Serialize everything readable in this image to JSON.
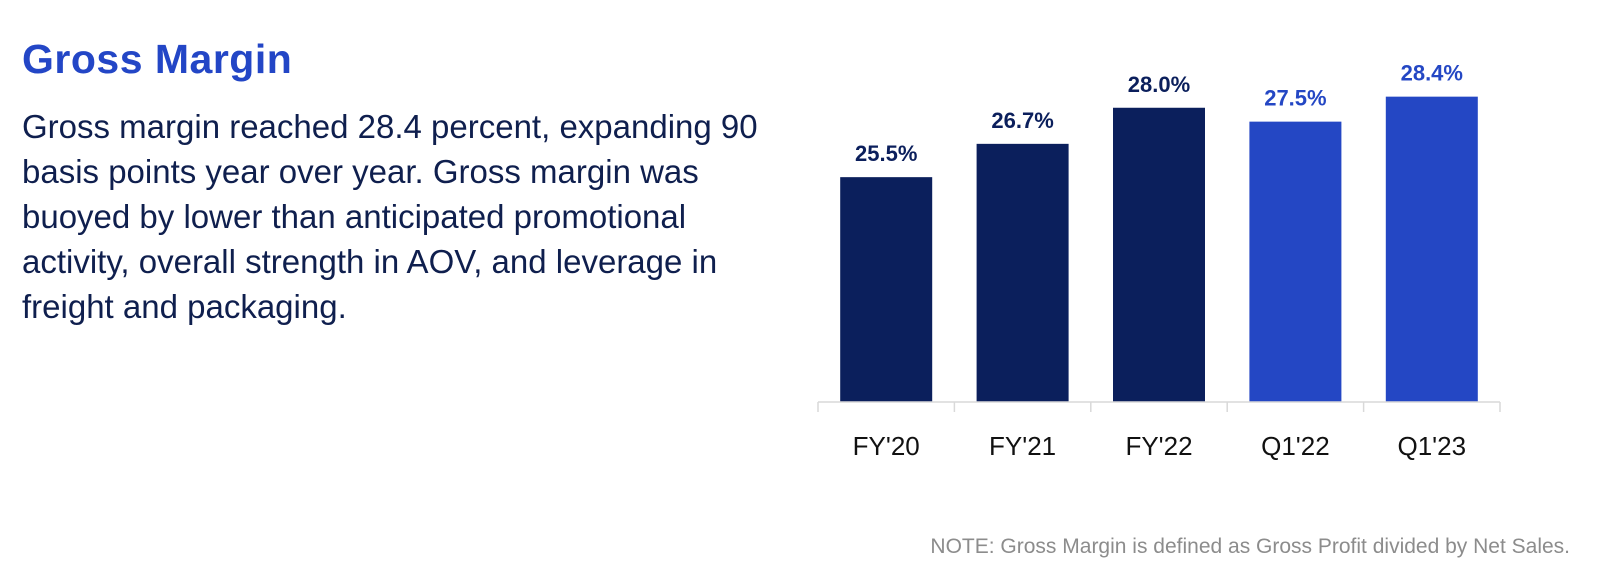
{
  "heading": "Gross Margin",
  "description": "Gross margin reached 28.4 percent, expanding 90 basis points year over year. Gross margin was buoyed by lower than anticipated promotional activity, overall strength in AOV, and leverage in freight and packaging.",
  "note": "NOTE: Gross Margin is defined as Gross Profit divided by Net Sales.",
  "colors": {
    "heading": "#2346c6",
    "text": "#0f1f4e",
    "annual_bar": "#0b1f5c",
    "quarter_bar": "#2447c4",
    "annual_label": "#0b1f5c",
    "quarter_label": "#2447c4",
    "axis": "#d9d9d9"
  },
  "chart_data": {
    "type": "bar",
    "categories": [
      "FY'20",
      "FY'21",
      "FY'22",
      "Q1'22",
      "Q1'23"
    ],
    "values": [
      25.5,
      26.7,
      28.0,
      27.5,
      28.4
    ],
    "data_labels": [
      "25.5%",
      "26.7%",
      "28.0%",
      "27.5%",
      "28.4%"
    ],
    "groups": [
      "annual",
      "annual",
      "annual",
      "quarter",
      "quarter"
    ],
    "ylim": [
      17.4,
      29.0
    ],
    "grid": false,
    "legend": "none",
    "title": "",
    "xlabel": "",
    "ylabel": ""
  }
}
